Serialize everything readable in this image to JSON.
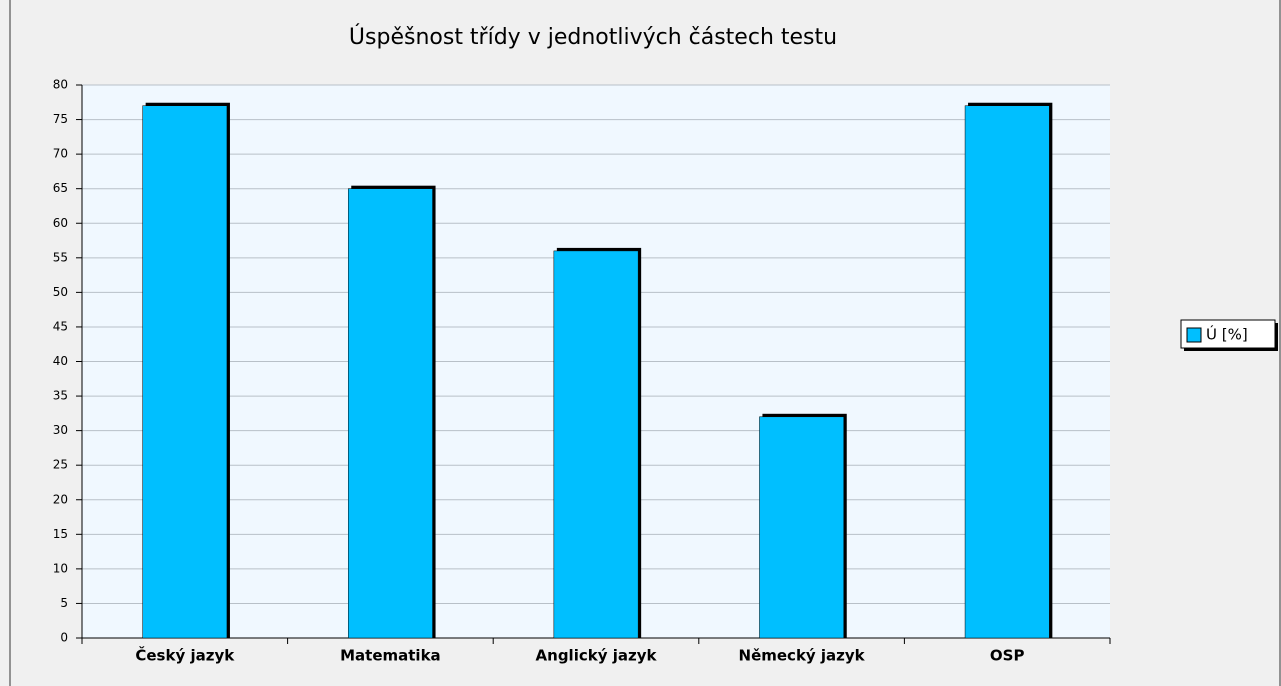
{
  "chart_data": {
    "type": "bar",
    "title": "Úspěšnost třídy v jednotlivých částech testu",
    "categories": [
      "Český jazyk",
      "Matematika",
      "Anglický jazyk",
      "Německý jazyk",
      "OSP"
    ],
    "series": [
      {
        "name": "Ú [%]",
        "color": "#00bfff",
        "values": [
          77,
          65,
          56,
          32,
          77
        ]
      }
    ],
    "ylim": [
      0,
      80
    ],
    "yticks": [
      0,
      5,
      10,
      15,
      20,
      25,
      30,
      35,
      40,
      45,
      50,
      55,
      60,
      65,
      70,
      75,
      80
    ],
    "grid": true,
    "legend": "right"
  }
}
